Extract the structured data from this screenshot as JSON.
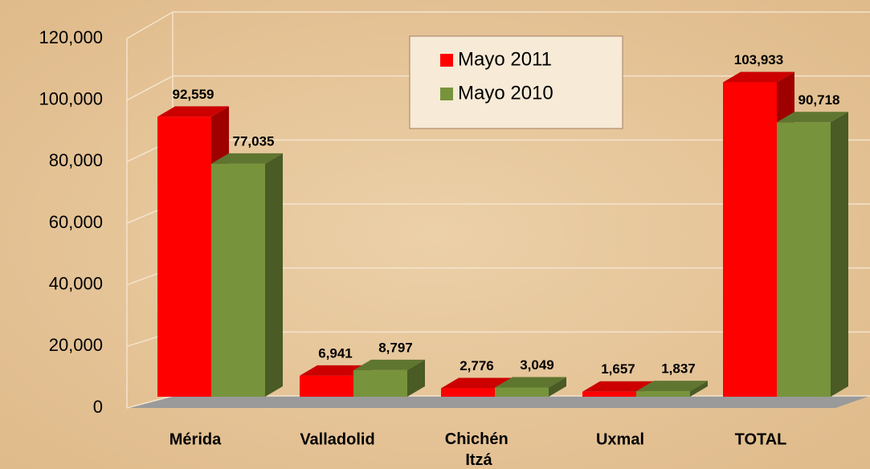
{
  "chart_data": {
    "type": "bar3d",
    "categories": [
      "Mérida",
      "Valladolid",
      "Chichén Itzá",
      "Uxmal",
      "TOTAL"
    ],
    "series": [
      {
        "name": "Mayo 2011",
        "color": "#ff0000",
        "values": [
          92559,
          6941,
          2776,
          1657,
          103933
        ],
        "value_labels": [
          "92,559",
          "6,941",
          "2,776",
          "1,657",
          "103,933"
        ]
      },
      {
        "name": "Mayo 2010",
        "color": "#77933c",
        "values": [
          77035,
          8797,
          3049,
          1837,
          90718
        ],
        "value_labels": [
          "77,035",
          "8,797",
          "3,049",
          "1,837",
          "90,718"
        ]
      }
    ],
    "ylim": [
      0,
      120000
    ],
    "yticks": [
      0,
      {
        "value": 20000,
        "label": "20,000"
      },
      {
        "value": 40000,
        "label": "40,000"
      },
      {
        "value": 60000,
        "label": "60,000"
      },
      {
        "value": 80000,
        "label": "80,000"
      },
      {
        "value": 100000,
        "label": "100,000"
      },
      {
        "value": 120000,
        "label": "120,000"
      }
    ],
    "grid": true,
    "legend": "top"
  }
}
